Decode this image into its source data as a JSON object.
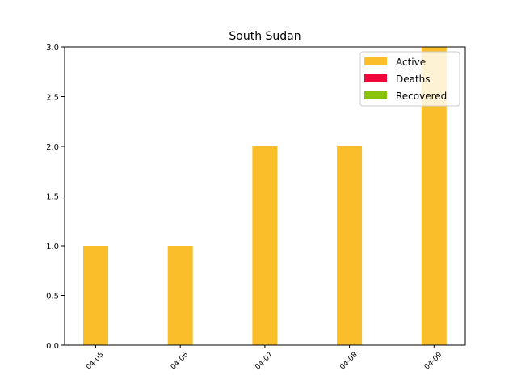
{
  "chart_data": {
    "type": "bar",
    "title": "South Sudan",
    "xlabel": "",
    "ylabel": "",
    "categories": [
      "04-05",
      "04-06",
      "04-07",
      "04-08",
      "04-09"
    ],
    "series": [
      {
        "name": "Active",
        "values": [
          1,
          1,
          2,
          2,
          3
        ],
        "color": "#f9be2a"
      },
      {
        "name": "Deaths",
        "values": [
          0,
          0,
          0,
          0,
          0
        ],
        "color": "#f0063a"
      },
      {
        "name": "Recovered",
        "values": [
          0,
          0,
          0,
          0,
          0
        ],
        "color": "#8ac10a"
      }
    ],
    "stacked": true,
    "ylim": [
      0,
      3
    ],
    "yticks": [
      "0.0",
      "0.5",
      "1.0",
      "1.5",
      "2.0",
      "2.5",
      "3.0"
    ],
    "grid": false,
    "legend_position": "top-right"
  }
}
